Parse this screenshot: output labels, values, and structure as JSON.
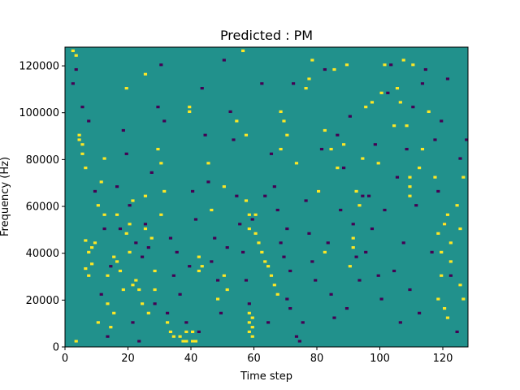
{
  "chart_data": {
    "type": "heatmap",
    "title": "Predicted : PM",
    "xlabel": "Time step",
    "ylabel": "Frequency (Hz)",
    "xlim": [
      0,
      128
    ],
    "ylim": [
      0,
      128000
    ],
    "x_ticks": [
      0,
      20,
      40,
      60,
      80,
      100,
      120
    ],
    "y_ticks": [
      0,
      20000,
      40000,
      60000,
      80000,
      100000,
      120000
    ],
    "y_tick_labels": [
      "0",
      "20000",
      "40000",
      "60000",
      "80000",
      "100000",
      "120000"
    ],
    "rows": 128,
    "cols": 128,
    "colors": {
      "background": "#21918c",
      "high": "#fde725",
      "low": "#440154"
    },
    "high_cells": [
      [
        2,
        126
      ],
      [
        3,
        124
      ],
      [
        3,
        2
      ],
      [
        4,
        90
      ],
      [
        4,
        88
      ],
      [
        5,
        86
      ],
      [
        5,
        82
      ],
      [
        6,
        76
      ],
      [
        6,
        45
      ],
      [
        6,
        33
      ],
      [
        7,
        40
      ],
      [
        7,
        30
      ],
      [
        8,
        42
      ],
      [
        8,
        35
      ],
      [
        9,
        44
      ],
      [
        10,
        10
      ],
      [
        10,
        60
      ],
      [
        11,
        70
      ],
      [
        12,
        80
      ],
      [
        12,
        56
      ],
      [
        13,
        18
      ],
      [
        13,
        30
      ],
      [
        14,
        8
      ],
      [
        15,
        14
      ],
      [
        15,
        38
      ],
      [
        16,
        56
      ],
      [
        16,
        36
      ],
      [
        17,
        32
      ],
      [
        18,
        24
      ],
      [
        19,
        110
      ],
      [
        19,
        48
      ],
      [
        20,
        40
      ],
      [
        20,
        52
      ],
      [
        21,
        62
      ],
      [
        21,
        26
      ],
      [
        22,
        28
      ],
      [
        23,
        24
      ],
      [
        24,
        18
      ],
      [
        25,
        116
      ],
      [
        25,
        64
      ],
      [
        25,
        50
      ],
      [
        26,
        14
      ],
      [
        27,
        46
      ],
      [
        28,
        24
      ],
      [
        28,
        32
      ],
      [
        29,
        84
      ],
      [
        30,
        78
      ],
      [
        30,
        56
      ],
      [
        31,
        66
      ],
      [
        32,
        10
      ],
      [
        33,
        6
      ],
      [
        34,
        4
      ],
      [
        36,
        4
      ],
      [
        37,
        2
      ],
      [
        38,
        2
      ],
      [
        38,
        6
      ],
      [
        39,
        102
      ],
      [
        39,
        100
      ],
      [
        40,
        2
      ],
      [
        40,
        6
      ],
      [
        41,
        2
      ],
      [
        42,
        38
      ],
      [
        42,
        32
      ],
      [
        43,
        34
      ],
      [
        45,
        78
      ],
      [
        46,
        58
      ],
      [
        48,
        20
      ],
      [
        50,
        68
      ],
      [
        50,
        30
      ],
      [
        51,
        24
      ],
      [
        54,
        96
      ],
      [
        56,
        126
      ],
      [
        57,
        90
      ],
      [
        57,
        62
      ],
      [
        58,
        6
      ],
      [
        58,
        10
      ],
      [
        58,
        14
      ],
      [
        58,
        50
      ],
      [
        58,
        56
      ],
      [
        59,
        4
      ],
      [
        59,
        8
      ],
      [
        59,
        12
      ],
      [
        60,
        56
      ],
      [
        60,
        48
      ],
      [
        61,
        44
      ],
      [
        62,
        40
      ],
      [
        63,
        36
      ],
      [
        64,
        34
      ],
      [
        65,
        30
      ],
      [
        66,
        26
      ],
      [
        67,
        22
      ],
      [
        68,
        100
      ],
      [
        68,
        84
      ],
      [
        69,
        96
      ],
      [
        70,
        90
      ],
      [
        73,
        78
      ],
      [
        76,
        110
      ],
      [
        77,
        114
      ],
      [
        78,
        122
      ],
      [
        80,
        66
      ],
      [
        82,
        92
      ],
      [
        82,
        40
      ],
      [
        84,
        84
      ],
      [
        85,
        118
      ],
      [
        86,
        76
      ],
      [
        88,
        86
      ],
      [
        89,
        120
      ],
      [
        90,
        34
      ],
      [
        91,
        46
      ],
      [
        91,
        42
      ],
      [
        92,
        66
      ],
      [
        93,
        60
      ],
      [
        94,
        80
      ],
      [
        95,
        102
      ],
      [
        97,
        104
      ],
      [
        99,
        78
      ],
      [
        100,
        108
      ],
      [
        101,
        120
      ],
      [
        104,
        94
      ],
      [
        105,
        110
      ],
      [
        106,
        104
      ],
      [
        107,
        122
      ],
      [
        108,
        94
      ],
      [
        109,
        64
      ],
      [
        109,
        68
      ],
      [
        109,
        72
      ],
      [
        110,
        120
      ],
      [
        112,
        76
      ],
      [
        113,
        84
      ],
      [
        115,
        100
      ],
      [
        117,
        72
      ],
      [
        118,
        20
      ],
      [
        118,
        48
      ],
      [
        119,
        30
      ],
      [
        119,
        40
      ],
      [
        120,
        16
      ],
      [
        120,
        52
      ],
      [
        121,
        12
      ],
      [
        121,
        56
      ],
      [
        122,
        36
      ],
      [
        122,
        44
      ],
      [
        124,
        60
      ],
      [
        125,
        26
      ],
      [
        125,
        50
      ],
      [
        126,
        20
      ],
      [
        126,
        72
      ]
    ],
    "low_cells": [
      [
        2,
        112
      ],
      [
        3,
        118
      ],
      [
        5,
        102
      ],
      [
        7,
        96
      ],
      [
        9,
        66
      ],
      [
        11,
        22
      ],
      [
        12,
        50
      ],
      [
        13,
        4
      ],
      [
        14,
        34
      ],
      [
        16,
        68
      ],
      [
        17,
        50
      ],
      [
        18,
        92
      ],
      [
        19,
        82
      ],
      [
        20,
        60
      ],
      [
        21,
        10
      ],
      [
        22,
        44
      ],
      [
        23,
        2
      ],
      [
        24,
        38
      ],
      [
        25,
        52
      ],
      [
        26,
        42
      ],
      [
        27,
        74
      ],
      [
        28,
        18
      ],
      [
        29,
        102
      ],
      [
        30,
        120
      ],
      [
        31,
        96
      ],
      [
        32,
        14
      ],
      [
        33,
        46
      ],
      [
        34,
        30
      ],
      [
        35,
        40
      ],
      [
        36,
        22
      ],
      [
        38,
        10
      ],
      [
        39,
        34
      ],
      [
        40,
        66
      ],
      [
        41,
        54
      ],
      [
        42,
        6
      ],
      [
        43,
        110
      ],
      [
        44,
        90
      ],
      [
        45,
        70
      ],
      [
        46,
        36
      ],
      [
        47,
        46
      ],
      [
        48,
        28
      ],
      [
        49,
        14
      ],
      [
        50,
        122
      ],
      [
        51,
        42
      ],
      [
        52,
        100
      ],
      [
        53,
        88
      ],
      [
        54,
        64
      ],
      [
        55,
        52
      ],
      [
        56,
        40
      ],
      [
        57,
        28
      ],
      [
        58,
        18
      ],
      [
        59,
        54
      ],
      [
        62,
        112
      ],
      [
        63,
        64
      ],
      [
        64,
        10
      ],
      [
        65,
        82
      ],
      [
        66,
        68
      ],
      [
        67,
        58
      ],
      [
        68,
        44
      ],
      [
        69,
        38
      ],
      [
        70,
        50
      ],
      [
        70,
        20
      ],
      [
        71,
        32
      ],
      [
        71,
        16
      ],
      [
        72,
        112
      ],
      [
        73,
        4
      ],
      [
        74,
        2
      ],
      [
        75,
        10
      ],
      [
        76,
        62
      ],
      [
        77,
        48
      ],
      [
        78,
        36
      ],
      [
        79,
        28
      ],
      [
        80,
        66
      ],
      [
        81,
        84
      ],
      [
        82,
        118
      ],
      [
        83,
        44
      ],
      [
        84,
        22
      ],
      [
        85,
        12
      ],
      [
        86,
        90
      ],
      [
        87,
        58
      ],
      [
        88,
        76
      ],
      [
        89,
        16
      ],
      [
        90,
        98
      ],
      [
        91,
        52
      ],
      [
        92,
        38
      ],
      [
        93,
        28
      ],
      [
        94,
        64
      ],
      [
        95,
        40
      ],
      [
        96,
        64
      ],
      [
        97,
        50
      ],
      [
        98,
        86
      ],
      [
        99,
        30
      ],
      [
        100,
        20
      ],
      [
        101,
        58
      ],
      [
        102,
        108
      ],
      [
        103,
        120
      ],
      [
        104,
        32
      ],
      [
        105,
        72
      ],
      [
        106,
        10
      ],
      [
        107,
        44
      ],
      [
        108,
        84
      ],
      [
        109,
        24
      ],
      [
        110,
        102
      ],
      [
        111,
        60
      ],
      [
        112,
        14
      ],
      [
        113,
        112
      ],
      [
        114,
        118
      ],
      [
        116,
        40
      ],
      [
        117,
        88
      ],
      [
        118,
        66
      ],
      [
        119,
        96
      ],
      [
        120,
        52
      ],
      [
        121,
        114
      ],
      [
        122,
        30
      ],
      [
        124,
        6
      ],
      [
        125,
        80
      ],
      [
        127,
        88
      ]
    ]
  }
}
